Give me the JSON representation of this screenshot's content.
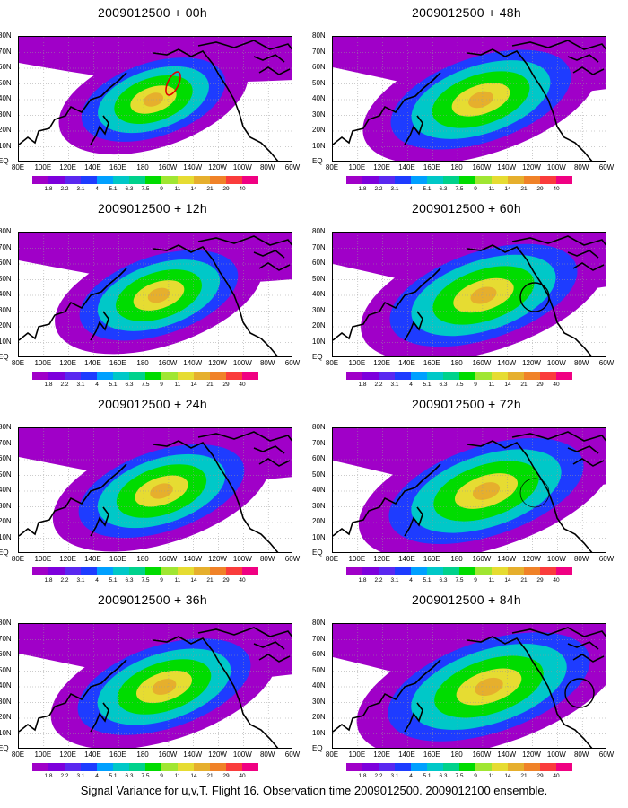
{
  "panels": [
    {
      "title": "2009012500 + 00h",
      "column": 0,
      "row": 0,
      "intensity": 0.45,
      "marker": "red_contour"
    },
    {
      "title": "2009012500 + 48h",
      "column": 1,
      "row": 0,
      "intensity": 0.7,
      "marker": ""
    },
    {
      "title": "2009012500 + 12h",
      "column": 0,
      "row": 1,
      "intensity": 0.55,
      "marker": ""
    },
    {
      "title": "2009012500 + 60h",
      "column": 1,
      "row": 1,
      "intensity": 0.75,
      "marker": "circle"
    },
    {
      "title": "2009012500 + 24h",
      "column": 0,
      "row": 2,
      "intensity": 0.6,
      "marker": ""
    },
    {
      "title": "2009012500 + 72h",
      "column": 1,
      "row": 2,
      "intensity": 0.8,
      "marker": "circle_faint"
    },
    {
      "title": "2009012500 + 36h",
      "column": 0,
      "row": 3,
      "intensity": 0.65,
      "marker": ""
    },
    {
      "title": "2009012500 + 84h",
      "column": 1,
      "row": 3,
      "intensity": 0.85,
      "marker": "circle"
    }
  ],
  "lat_labels": [
    "80N",
    "70N",
    "60N",
    "50N",
    "40N",
    "30N",
    "20N",
    "10N",
    "EQ"
  ],
  "lon_labels": [
    "80E",
    "100E",
    "120E",
    "140E",
    "160E",
    "180",
    "160W",
    "140W",
    "120W",
    "100W",
    "80W",
    "60W"
  ],
  "colorbar": {
    "labels": [
      "1.8",
      "2.2",
      "3.1",
      "4",
      "5.1",
      "6.3",
      "7.5",
      "9",
      "11",
      "14",
      "21",
      "29",
      "40"
    ],
    "colors": [
      "#a000c8",
      "#7d00dc",
      "#5a28f0",
      "#1e3cff",
      "#00a0ff",
      "#00c8c8",
      "#00d28c",
      "#00dc00",
      "#a0e632",
      "#e6dc32",
      "#e6af2d",
      "#f08228",
      "#fa3c3c",
      "#f00082"
    ]
  },
  "caption": "Signal Variance for u,v,T. Flight 16. Observation time 2009012500. 2009012100 ensemble."
}
